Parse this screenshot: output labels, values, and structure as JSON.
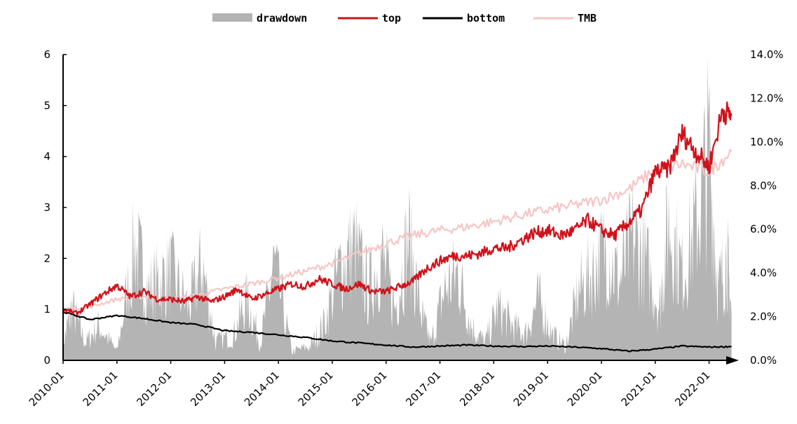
{
  "chart_data": {
    "type": "line",
    "title": "",
    "xlabel": "",
    "ylabel": "",
    "x_ticks": [
      "2010-01",
      "2011-01",
      "2012-01",
      "2013-01",
      "2014-01",
      "2015-01",
      "2016-01",
      "2017-01",
      "2018-01",
      "2019-01",
      "2020-01",
      "2021-01",
      "2022-01"
    ],
    "x_range": [
      "2010-01",
      "2022-07"
    ],
    "y_left": {
      "range": [
        0,
        6
      ],
      "ticks": [
        "0",
        "1",
        "2",
        "3",
        "4",
        "5",
        "6"
      ]
    },
    "y_right": {
      "range": [
        0,
        14
      ],
      "ticks": [
        "0.0%",
        "2.0%",
        "4.0%",
        "6.0%",
        "8.0%",
        "10.0%",
        "12.0%",
        "14.0%"
      ]
    },
    "grid": false,
    "legend_position": "top-center",
    "colors": {
      "drawdown": "#b4b4b4",
      "top": "#d0121b",
      "bottom": "#000000",
      "TMB": "#f5c6c6"
    },
    "series": [
      {
        "name": "top",
        "axis": "left",
        "x": [
          "2010-01",
          "2010-04",
          "2010-07",
          "2010-10",
          "2011-01",
          "2011-04",
          "2011-07",
          "2011-10",
          "2012-01",
          "2012-04",
          "2012-07",
          "2012-10",
          "2013-01",
          "2013-04",
          "2013-07",
          "2013-10",
          "2014-01",
          "2014-04",
          "2014-07",
          "2014-10",
          "2015-01",
          "2015-04",
          "2015-07",
          "2015-10",
          "2016-01",
          "2016-04",
          "2016-07",
          "2016-10",
          "2017-01",
          "2017-04",
          "2017-07",
          "2017-10",
          "2018-01",
          "2018-04",
          "2018-07",
          "2018-10",
          "2019-01",
          "2019-04",
          "2019-07",
          "2019-10",
          "2020-01",
          "2020-04",
          "2020-07",
          "2020-10",
          "2021-01",
          "2021-04",
          "2021-07",
          "2021-10",
          "2022-01",
          "2022-04",
          "2022-06"
        ],
        "y": [
          1.0,
          0.92,
          1.1,
          1.3,
          1.47,
          1.25,
          1.35,
          1.2,
          1.2,
          1.15,
          1.25,
          1.15,
          1.25,
          1.4,
          1.2,
          1.3,
          1.4,
          1.5,
          1.45,
          1.6,
          1.5,
          1.4,
          1.5,
          1.35,
          1.35,
          1.45,
          1.55,
          1.8,
          1.95,
          2.05,
          2.05,
          2.1,
          2.2,
          2.2,
          2.35,
          2.5,
          2.55,
          2.45,
          2.55,
          2.75,
          2.55,
          2.45,
          2.7,
          2.95,
          3.7,
          3.75,
          4.45,
          4.1,
          3.8,
          4.9,
          4.8
        ]
      },
      {
        "name": "bottom",
        "axis": "left",
        "x": [
          "2010-01",
          "2010-07",
          "2011-01",
          "2011-07",
          "2012-01",
          "2012-07",
          "2013-01",
          "2013-07",
          "2014-01",
          "2014-07",
          "2015-01",
          "2015-07",
          "2016-01",
          "2016-07",
          "2017-01",
          "2017-07",
          "2018-01",
          "2018-07",
          "2019-01",
          "2019-07",
          "2020-01",
          "2020-07",
          "2021-01",
          "2021-07",
          "2022-01",
          "2022-06"
        ],
        "y": [
          0.95,
          0.8,
          0.88,
          0.82,
          0.74,
          0.7,
          0.58,
          0.55,
          0.5,
          0.45,
          0.38,
          0.34,
          0.3,
          0.26,
          0.28,
          0.3,
          0.28,
          0.27,
          0.28,
          0.26,
          0.23,
          0.18,
          0.22,
          0.28,
          0.26,
          0.27
        ]
      },
      {
        "name": "TMB",
        "axis": "left",
        "x": [
          "2010-01",
          "2010-07",
          "2011-01",
          "2011-07",
          "2012-01",
          "2012-07",
          "2013-01",
          "2013-07",
          "2014-01",
          "2014-07",
          "2015-01",
          "2015-07",
          "2016-01",
          "2016-07",
          "2017-01",
          "2017-07",
          "2018-01",
          "2018-07",
          "2019-01",
          "2019-07",
          "2020-01",
          "2020-07",
          "2021-01",
          "2021-07",
          "2022-01",
          "2022-06"
        ],
        "y": [
          1.0,
          1.05,
          1.2,
          1.25,
          1.2,
          1.28,
          1.4,
          1.5,
          1.62,
          1.75,
          1.9,
          2.1,
          2.3,
          2.45,
          2.55,
          2.62,
          2.72,
          2.85,
          2.95,
          3.05,
          3.15,
          3.35,
          3.75,
          3.85,
          3.7,
          4.1
        ]
      }
    ],
    "area_series": {
      "name": "drawdown",
      "axis": "right",
      "x": [
        "2010-01",
        "2010-03",
        "2010-06",
        "2010-09",
        "2011-01",
        "2011-05",
        "2011-08",
        "2011-10",
        "2012-01",
        "2012-05",
        "2012-08",
        "2012-11",
        "2013-03",
        "2013-06",
        "2013-09",
        "2013-12",
        "2014-04",
        "2014-08",
        "2014-11",
        "2015-03",
        "2015-06",
        "2015-09",
        "2015-12",
        "2016-03",
        "2016-06",
        "2016-09",
        "2016-11",
        "2017-02",
        "2017-05",
        "2017-08",
        "2017-11",
        "2018-02",
        "2018-05",
        "2018-08",
        "2018-11",
        "2019-02",
        "2019-05",
        "2019-08",
        "2019-11",
        "2020-02",
        "2020-05",
        "2020-08",
        "2020-11",
        "2021-02",
        "2021-04",
        "2021-07",
        "2021-10",
        "2022-01",
        "2022-03",
        "2022-05",
        "2022-06"
      ],
      "y": [
        1.0,
        3.0,
        1.0,
        2.0,
        0.5,
        6.5,
        4.0,
        4.5,
        5.0,
        3.0,
        5.5,
        1.0,
        1.5,
        3.5,
        1.0,
        5.5,
        0.5,
        0.8,
        2.0,
        5.5,
        6.5,
        4.0,
        6.0,
        3.0,
        7.0,
        2.5,
        1.0,
        4.0,
        5.0,
        2.0,
        1.0,
        3.0,
        2.0,
        1.5,
        3.5,
        1.5,
        0.8,
        4.0,
        5.0,
        6.5,
        4.5,
        7.0,
        5.5,
        3.0,
        8.0,
        5.0,
        7.5,
        12.0,
        4.0,
        6.0,
        2.5
      ]
    }
  }
}
